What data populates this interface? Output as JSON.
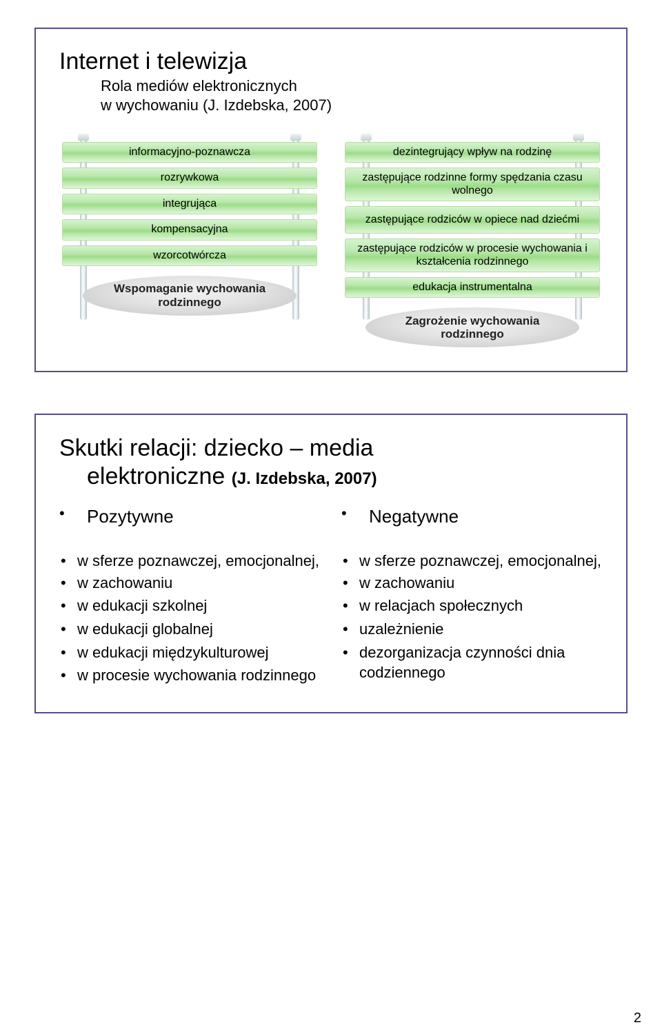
{
  "colors": {
    "frame_border": "#5b4a8a",
    "bar_gradient": [
      "#d7f3d0",
      "#b7e7a9",
      "#9cdc87",
      "#b7e7a9",
      "#dff6d7"
    ],
    "bar_border": "#b8dca9",
    "post_gradient": [
      "#b8c5c8",
      "#e2eaec",
      "#ffffff",
      "#e2eaec",
      "#b1bfc2"
    ],
    "pedestal_gradient": [
      "#f1f1f1",
      "#e3e3e3",
      "#cfcfcf",
      "#bdbdbd"
    ],
    "background": "#ffffff",
    "text": "#000000"
  },
  "typography": {
    "font_family": "Arial",
    "title_fontsize": 34,
    "subtitle_fontsize": 22,
    "heading_fontsize": 26,
    "body_fontsize": 22,
    "bar_fontsize": 16,
    "pedestal_fontsize": 17,
    "pedestal_weight": "700"
  },
  "page_number": "2",
  "slide1": {
    "title": "Internet i telewizja",
    "subtitle_line1": "Rola mediów elektronicznych",
    "subtitle_line2": "w wychowaniu  (J. Izdebska, 2007)",
    "left_pillar": {
      "bars": [
        "informacyjno-poznawcza",
        "rozrywkowa",
        "integrująca",
        "kompensacyjna",
        "wzorcotwórcza"
      ],
      "pedestal": "Wspomaganie wychowania rodzinnego"
    },
    "right_pillar": {
      "bars": [
        "dezintegrujący wpływ na rodzinę",
        "zastępujące rodzinne formy spędzania czasu wolnego",
        "zastępujące rodziców w opiece nad dziećmi",
        "zastępujące rodziców w procesie wychowania i kształcenia rodzinnego",
        "edukacja instrumentalna"
      ],
      "pedestal": "Zagrożenie wychowania rodzinnego"
    }
  },
  "slide2": {
    "title_line1": "Skutki relacji: dziecko – media",
    "title_line2_a": "elektroniczne",
    "title_line2_cite": "(J. Izdebska, 2007)",
    "col_left_heading": "Pozytywne",
    "col_right_heading": "Negatywne",
    "col_left_items": [
      "w sferze poznawczej, emocjonalnej,",
      "__sub__w zachowaniu",
      "w edukacji szkolnej",
      "w edukacji globalnej",
      "w edukacji międzykulturowej",
      "w procesie wychowania rodzinnego"
    ],
    "col_right_items": [
      "w sferze poznawczej, emocjonalnej,",
      "__sub__w zachowaniu",
      "w relacjach społecznych",
      "uzależnienie",
      "dezorganizacja czynności dnia codziennego"
    ]
  }
}
